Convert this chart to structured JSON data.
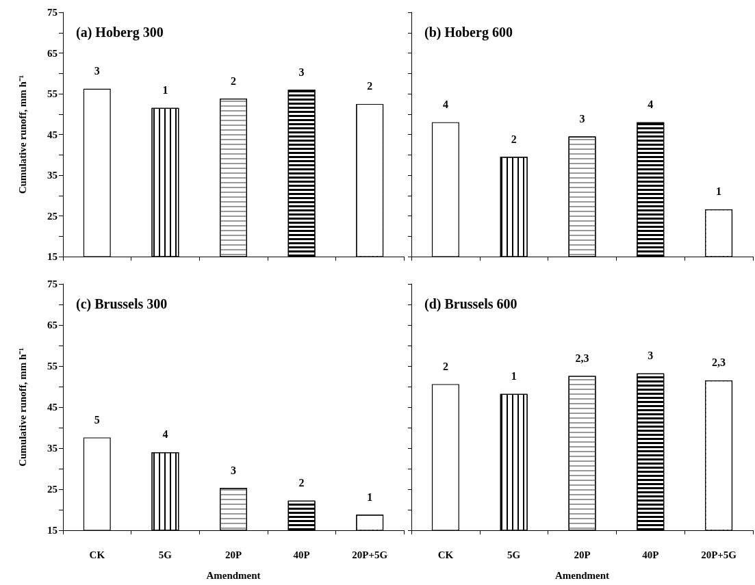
{
  "chart_data": [
    {
      "type": "bar",
      "title": "(a) Hoberg 300",
      "ylabel": "Cumulative runoff, mm h⁻¹",
      "categories": [
        "CK",
        "5G",
        "20P",
        "40P",
        "20P+5G"
      ],
      "values": [
        56.2,
        51.5,
        53.8,
        56.0,
        52.5
      ],
      "colors": [
        "#ffffff",
        "#ffffff",
        "#ffffff",
        "#ffffff",
        "#ffffff"
      ],
      "ylim": [
        15,
        75
      ],
      "yticks": [
        15,
        {
          "value": 20,
          "label": null
        },
        25,
        {
          "value": 30,
          "label": null
        },
        35,
        {
          "value": 40,
          "label": null
        },
        45,
        {
          "value": 50,
          "label": null
        },
        55,
        {
          "value": 60,
          "label": null
        },
        65,
        {
          "value": 70,
          "label": null
        },
        75
      ],
      "tick_labels": "y",
      "annotations": [
        {
          "text": "3",
          "x": "CK",
          "y": 56.2
        },
        {
          "text": "1",
          "x": "5G",
          "y": 51.5
        },
        {
          "text": "2",
          "x": "20P",
          "y": 53.8
        },
        {
          "text": "3",
          "x": "40P",
          "y": 56.0
        },
        {
          "text": "2",
          "x": "20P+5G",
          "y": 52.5
        }
      ]
    },
    {
      "type": "bar",
      "title": "(b) Hoberg 600",
      "categories": [
        "CK",
        "5G",
        "20P",
        "40P",
        "20P+5G"
      ],
      "values": [
        48.0,
        39.5,
        44.5,
        48.0,
        26.6
      ],
      "colors": [
        "#ffffff",
        "#ffffff",
        "#ffffff",
        "#ffffff",
        "#ffffff"
      ],
      "ylim": [
        15,
        75
      ],
      "yticks": [
        15,
        {
          "value": 20,
          "label": null
        },
        25,
        {
          "value": 30,
          "label": null
        },
        35,
        {
          "value": 40,
          "label": null
        },
        45,
        {
          "value": 50,
          "label": null
        },
        55,
        {
          "value": 60,
          "label": null
        },
        65,
        {
          "value": 70,
          "label": null
        },
        75
      ],
      "tick_labels": false,
      "annotations": [
        {
          "text": "4",
          "x": "CK",
          "y": 48.0
        },
        {
          "text": "2",
          "x": "5G",
          "y": 39.5
        },
        {
          "text": "3",
          "x": "20P",
          "y": 44.5
        },
        {
          "text": "4",
          "x": "40P",
          "y": 48.0
        },
        {
          "text": "1",
          "x": "20P+5G",
          "y": 26.6
        }
      ]
    },
    {
      "type": "bar",
      "title": "(c) Brussels 300",
      "xlabel": "Amendment",
      "ylabel": "Cumulative runoff, mm h⁻¹",
      "categories": [
        "CK",
        "5G",
        "20P",
        "40P",
        "20P+5G"
      ],
      "values": [
        37.6,
        34.0,
        25.3,
        22.2,
        18.8
      ],
      "colors": [
        "#ffffff",
        "#ffffff",
        "#ffffff",
        "#ffffff",
        "#ffffff"
      ],
      "ylim": [
        15,
        75
      ],
      "yticks": [
        15,
        {
          "value": 20,
          "label": null
        },
        25,
        {
          "value": 30,
          "label": null
        },
        35,
        {
          "value": 40,
          "label": null
        },
        45,
        {
          "value": 50,
          "label": null
        },
        55,
        {
          "value": 60,
          "label": null
        },
        65,
        {
          "value": 70,
          "label": null
        },
        75
      ],
      "annotations": [
        {
          "text": "5",
          "x": "CK",
          "y": 37.6
        },
        {
          "text": "4",
          "x": "5G",
          "y": 34.0
        },
        {
          "text": "3",
          "x": "20P",
          "y": 25.3
        },
        {
          "text": "2",
          "x": "40P",
          "y": 22.2
        },
        {
          "text": "1",
          "x": "20P+5G",
          "y": 18.8
        }
      ]
    },
    {
      "type": "bar",
      "title": "(d) Brussels 600",
      "xlabel": "Amendment",
      "categories": [
        "CK",
        "5G",
        "20P",
        "40P",
        "20P+5G"
      ],
      "values": [
        50.6,
        48.2,
        52.6,
        53.2,
        51.5
      ],
      "colors": [
        "#ffffff",
        "#ffffff",
        "#ffffff",
        "#ffffff",
        "#ffffff"
      ],
      "ylim": [
        15,
        75
      ],
      "yticks": [
        15,
        {
          "value": 20,
          "label": null
        },
        25,
        {
          "value": 30,
          "label": null
        },
        35,
        {
          "value": 40,
          "label": null
        },
        45,
        {
          "value": 50,
          "label": null
        },
        55,
        {
          "value": 60,
          "label": null
        },
        65,
        {
          "value": 70,
          "label": null
        },
        75
      ],
      "tick_labels": "x",
      "annotations": [
        {
          "text": "2",
          "x": "CK",
          "y": 50.6
        },
        {
          "text": "1",
          "x": "5G",
          "y": 48.2
        },
        {
          "text": "2,3",
          "x": "20P",
          "y": 52.6
        },
        {
          "text": "3",
          "x": "40P",
          "y": 53.2
        },
        {
          "text": "2,3",
          "x": "20P+5G",
          "y": 51.5
        }
      ]
    }
  ]
}
